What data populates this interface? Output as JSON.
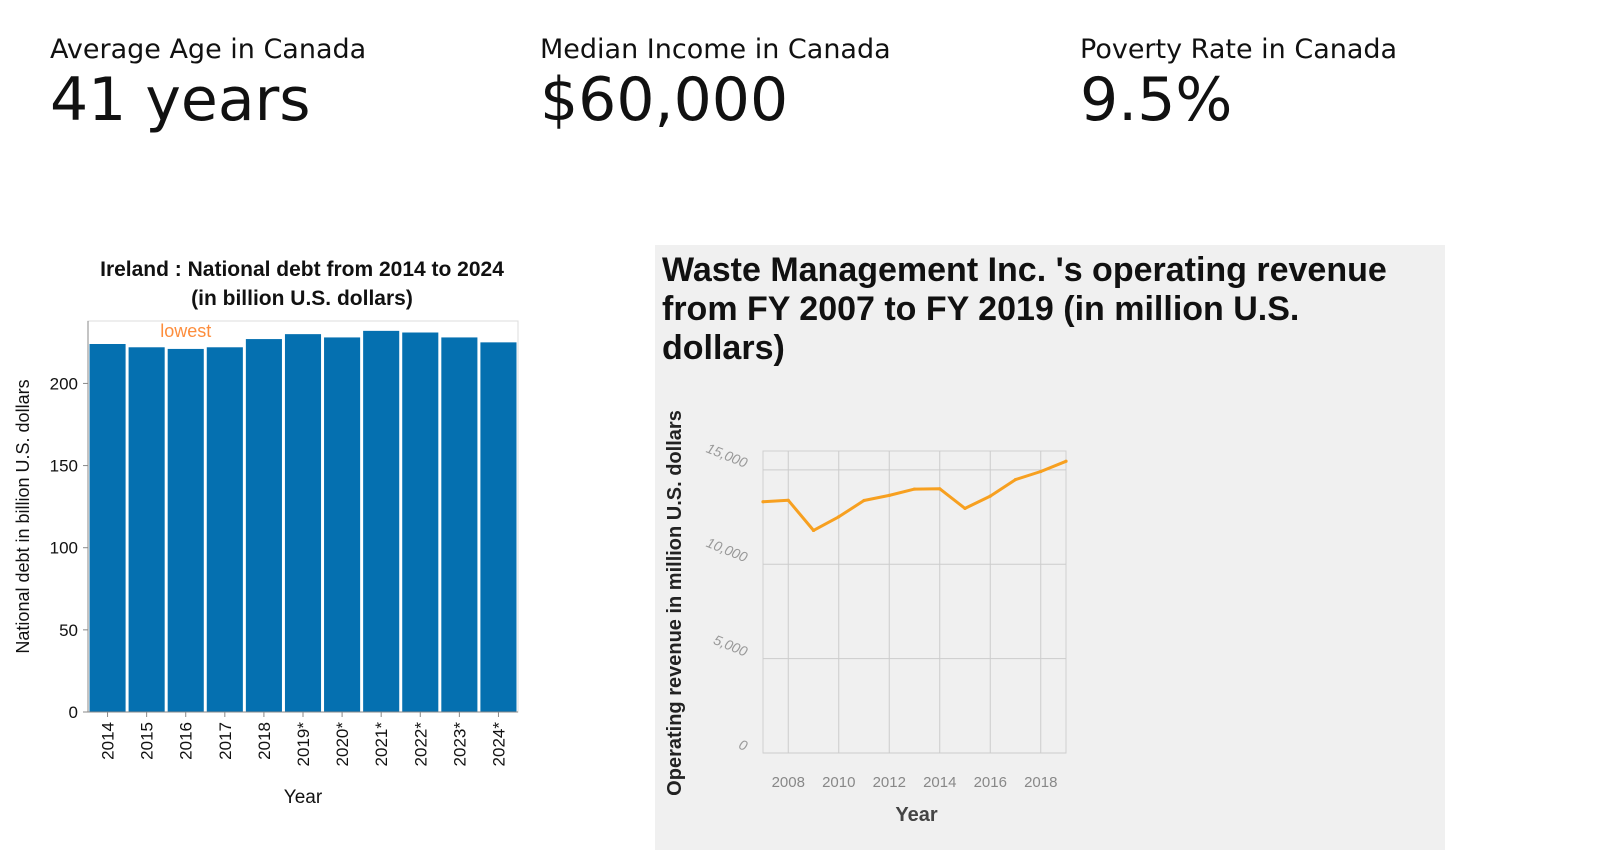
{
  "kpis": [
    {
      "label": "Average Age in Canada",
      "value": "41 years"
    },
    {
      "label": "Median Income in Canada",
      "value": "$60,000"
    },
    {
      "label": "Poverty Rate in Canada",
      "value": "9.5%"
    }
  ],
  "chart_data": [
    {
      "type": "bar",
      "title": [
        "Ireland : National debt from 2014 to 2024",
        "(in billion U.S. dollars)"
      ],
      "xlabel": "Year",
      "ylabel": "National debt in billion U.S. dollars",
      "categories": [
        "2014",
        "2015",
        "2016",
        "2017",
        "2018",
        "2019*",
        "2020*",
        "2021*",
        "2022*",
        "2023*",
        "2024*"
      ],
      "values": [
        224,
        222,
        221,
        222,
        227,
        230,
        228,
        232,
        231,
        228,
        225
      ],
      "ylim": [
        0,
        238
      ],
      "yticks": [
        0,
        50,
        100,
        150,
        200
      ],
      "annotation": {
        "text": "lowest",
        "category": "2016"
      },
      "colors": {
        "bar": "#0570b0",
        "annotation": "#fd8d3c"
      },
      "grid": false
    },
    {
      "type": "line",
      "title": [
        "Waste Management Inc. 's operating revenue",
        "from FY 2007 to FY 2019 (in million U.S.",
        "dollars)"
      ],
      "xlabel": "Year",
      "ylabel": "Operating revenue in million U.S. dollars",
      "x": [
        2007,
        2008,
        2009,
        2010,
        2011,
        2012,
        2013,
        2014,
        2015,
        2016,
        2017,
        2018,
        2019
      ],
      "values": [
        13310,
        13388,
        11791,
        12515,
        13378,
        13649,
        13983,
        13996,
        12961,
        13609,
        14485,
        14914,
        15455
      ],
      "xlim": [
        2007,
        2019
      ],
      "ylim": [
        0,
        16000
      ],
      "xticks": [
        2008,
        2010,
        2012,
        2014,
        2016,
        2018
      ],
      "yticks": [
        0,
        5000,
        10000,
        15000
      ],
      "ytick_labels": [
        "0",
        "5,000",
        "10,000",
        "15,000"
      ],
      "colors": {
        "line": "#f7a020",
        "panel": "#f0f0f0"
      },
      "grid": true
    }
  ]
}
